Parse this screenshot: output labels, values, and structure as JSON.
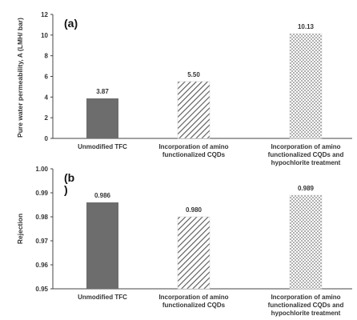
{
  "chart_data": [
    {
      "type": "bar",
      "panel_label": "(a)",
      "ylabel": "Pure water permeability, A (LMH/ bar)",
      "ylim": [
        0,
        12
      ],
      "yticks": [
        "0",
        "2",
        "4",
        "6",
        "8",
        "10",
        "12"
      ],
      "categories": [
        [
          "Unmodified TFC"
        ],
        [
          "Incorporation of amino",
          "functionalized CQDs"
        ],
        [
          "Incorporation of amino",
          "functionalized CQDs and",
          "hypochlorite treatment"
        ]
      ],
      "values": [
        3.87,
        5.5,
        10.13
      ],
      "value_labels": [
        "3.87",
        "5.50",
        "10.13"
      ],
      "patterns": [
        "solid",
        "diagonal",
        "dots"
      ],
      "colors": {
        "solid": "#6d6d6d",
        "hatch": "#555555",
        "dots": "#777777"
      }
    },
    {
      "type": "bar",
      "panel_label": "(b\n)",
      "ylabel": "Rejection",
      "ylim": [
        0.95,
        1.0
      ],
      "yticks": [
        "0.95",
        "0.96",
        "0.97",
        "0.98",
        "0.99",
        "1.00"
      ],
      "categories": [
        [
          "Unmodified TFC"
        ],
        [
          "Incorporation of amino",
          "functionalized CQDs"
        ],
        [
          "Incorporation of amino",
          "functionalized CQDs and",
          "hypochlorite treatment"
        ]
      ],
      "values": [
        0.986,
        0.98,
        0.989
      ],
      "value_labels": [
        "0.986",
        "0.980",
        "0.989"
      ],
      "patterns": [
        "solid",
        "diagonal",
        "dots"
      ],
      "colors": {
        "solid": "#6d6d6d",
        "hatch": "#555555",
        "dots": "#777777"
      }
    }
  ]
}
